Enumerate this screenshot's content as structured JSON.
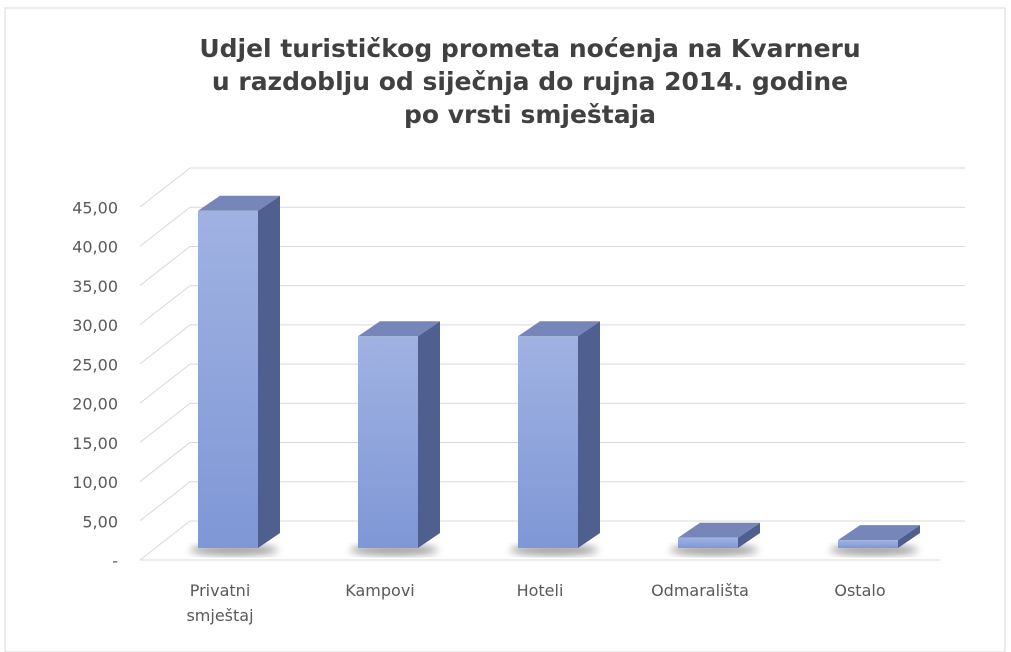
{
  "chart_data": {
    "type": "bar3d",
    "title": [
      "Udjel turističkog prometa noćenja na Kvarneru",
      "u razdoblju od siječnja do rujna 2014. godine",
      "po vrsti smještaja"
    ],
    "categories": [
      "Privatni smještaj",
      "Kampovi",
      "Hoteli",
      "Odmarališta",
      "Ostalo"
    ],
    "values": [
      43,
      27,
      27,
      1.3,
      1.0
    ],
    "color": "#8fa4dc",
    "ylim": [
      0,
      45
    ],
    "yticks": [
      {
        "value": 0,
        "label": "-"
      },
      {
        "value": 5,
        "label": "5,00"
      },
      {
        "value": 10,
        "label": "10,00"
      },
      {
        "value": 15,
        "label": "15,00"
      },
      {
        "value": 20,
        "label": "20,00"
      },
      {
        "value": 25,
        "label": "25,00"
      },
      {
        "value": 30,
        "label": "30,00"
      },
      {
        "value": 35,
        "label": "35,00"
      },
      {
        "value": 40,
        "label": "40,00"
      },
      {
        "value": 45,
        "label": "45,00"
      }
    ],
    "grid": true
  }
}
